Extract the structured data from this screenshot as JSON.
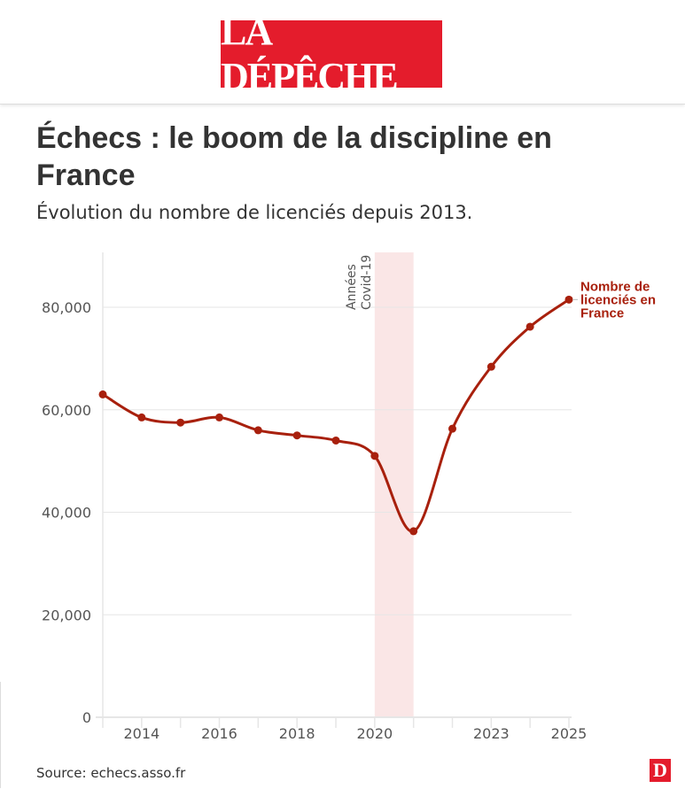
{
  "header": {
    "logo_text": "LA DÉPÊCHE"
  },
  "title": "Échecs : le boom de la discipline en France",
  "subtitle": "Évolution du nombre de licenciés depuis 2013.",
  "source": "Source: echecs.asso.fr",
  "footer_logo_text": "D",
  "colors": {
    "line": "#a8200d",
    "band": "#fae6e6",
    "brand": "#e41c2c"
  },
  "chart_data": {
    "type": "line",
    "x": [
      2013,
      2014,
      2015,
      2016,
      2017,
      2018,
      2019,
      2020,
      2021,
      2022,
      2023,
      2024,
      2025
    ],
    "series": [
      {
        "name": "Nombre de licenciés en France",
        "values": [
          63000,
          58500,
          57500,
          58500,
          56000,
          55000,
          54000,
          51000,
          36300,
          56300,
          68400,
          76200,
          81500
        ]
      }
    ],
    "ylim": [
      0,
      90000
    ],
    "xlim": [
      2013,
      2025
    ],
    "yticks": [
      {
        "v": 0,
        "label": "0"
      },
      {
        "v": 20000,
        "label": "20,000"
      },
      {
        "v": 40000,
        "label": "40,000"
      },
      {
        "v": 60000,
        "label": "60,000"
      },
      {
        "v": 80000,
        "label": "80,000"
      }
    ],
    "xticks": [
      {
        "v": 2014,
        "label": "2014"
      },
      {
        "v": 2016,
        "label": "2016"
      },
      {
        "v": 2018,
        "label": "2018"
      },
      {
        "v": 2020,
        "label": "2020"
      },
      {
        "v": 2023,
        "label": "2023"
      },
      {
        "v": 2025,
        "label": "2025"
      }
    ],
    "annotation": {
      "x_start": 2020,
      "x_end": 2021,
      "label_lines": [
        "Années",
        "Covid-19"
      ]
    },
    "series_label_lines": [
      "Nombre de",
      "licenciés en",
      "France"
    ],
    "grid": true
  }
}
